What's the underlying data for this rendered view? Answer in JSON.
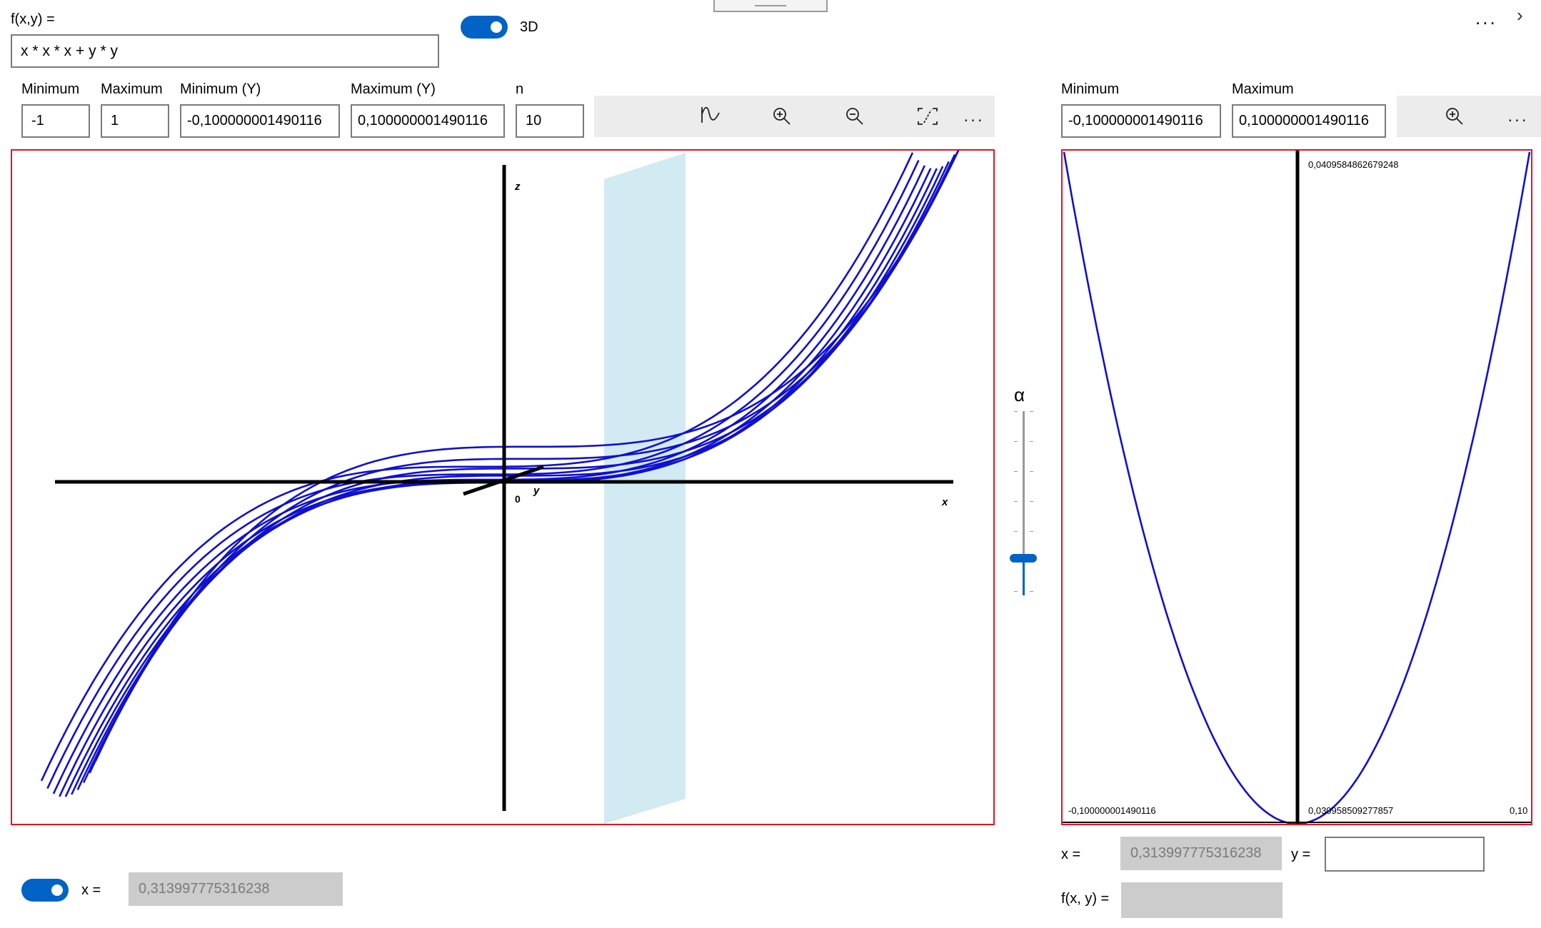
{
  "function_label": "f(x,y) =",
  "function_value": "x * x * x + y * y",
  "toggle_3d_label": "3D",
  "more_label": "...",
  "chevron_label": ">",
  "left_params": {
    "min_label": "Minimum",
    "min_value": "-1",
    "max_label": "Maximum",
    "max_value": "1",
    "miny_label": "Minimum (Y)",
    "miny_value": "-0,100000001490116",
    "maxy_label": "Maximum (Y)",
    "maxy_value": "0,100000001490116",
    "n_label": "n",
    "n_value": "10"
  },
  "left_toolbar": {
    "icons": [
      "graph-icon",
      "zoom-in-icon",
      "zoom-out-icon",
      "fit-screen-icon"
    ],
    "more": "..."
  },
  "plot3d": {
    "axis_z": "z",
    "axis_x": "x",
    "axis_y": "y",
    "origin": "0"
  },
  "alpha_label": "α",
  "alpha_slider": {
    "value_fraction": 0.2
  },
  "right_params": {
    "min_label": "Minimum",
    "min_value": "-0,100000001490116",
    "max_label": "Maximum",
    "max_value": "0,100000001490116"
  },
  "right_toolbar": {
    "icons": [
      "zoom-in-icon"
    ],
    "more": "..."
  },
  "plot2d": {
    "top_label": "0,0409584862679248",
    "bottom_left": "-0,100000001490116",
    "bottom_mid": "0,030958509277857",
    "bottom_right": "0,10"
  },
  "bottom_left": {
    "x_label": "x =",
    "x_value": "0,313997775316238"
  },
  "bottom_right": {
    "x_label": "x =",
    "x_value": "0,313997775316238",
    "y_label": "y =",
    "y_value": "",
    "f_label": "f(x, y) =",
    "f_value": ""
  },
  "colors": {
    "accent": "#0063c5",
    "curve": "#1010d0",
    "plane": "#cde8f0",
    "border": "#e81123"
  }
}
